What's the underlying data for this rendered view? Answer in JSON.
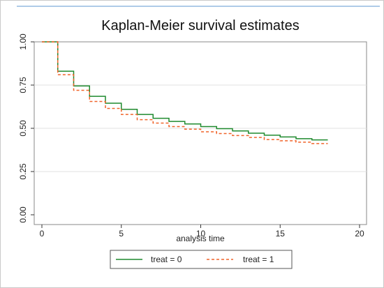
{
  "chart_data": {
    "type": "line",
    "step": true,
    "title": "Kaplan-Meier survival estimates",
    "xlabel": "analysis time",
    "ylabel": "",
    "xlim": [
      0,
      20
    ],
    "ylim": [
      0,
      1
    ],
    "xticks": [
      0,
      5,
      10,
      15,
      20
    ],
    "yticks": [
      0.0,
      0.25,
      0.5,
      0.75,
      1.0
    ],
    "xtick_labels": [
      "0",
      "5",
      "10",
      "15",
      "20"
    ],
    "ytick_labels": [
      "0.00",
      "0.25",
      "0.50",
      "0.75",
      "1.00"
    ],
    "grid": "horizontal",
    "legend_position": "bottom",
    "series": [
      {
        "name": "treat = 0",
        "color": "#1f8a2e",
        "dash": "solid",
        "x": [
          0,
          1,
          2,
          3,
          4,
          5,
          6,
          7,
          8,
          9,
          10,
          11,
          12,
          13,
          14,
          15,
          16,
          17,
          18
        ],
        "y": [
          1.0,
          0.83,
          0.745,
          0.685,
          0.645,
          0.61,
          0.58,
          0.558,
          0.54,
          0.525,
          0.51,
          0.498,
          0.485,
          0.472,
          0.46,
          0.45,
          0.44,
          0.433,
          0.433
        ]
      },
      {
        "name": "treat = 1",
        "color": "#f0642a",
        "dash": "dashed",
        "x": [
          0,
          1,
          2,
          3,
          4,
          5,
          6,
          7,
          8,
          9,
          10,
          11,
          12,
          13,
          14,
          15,
          16,
          17,
          18
        ],
        "y": [
          1.0,
          0.81,
          0.72,
          0.655,
          0.615,
          0.58,
          0.55,
          0.53,
          0.51,
          0.495,
          0.48,
          0.47,
          0.458,
          0.447,
          0.435,
          0.428,
          0.42,
          0.412,
          0.412
        ]
      }
    ]
  }
}
